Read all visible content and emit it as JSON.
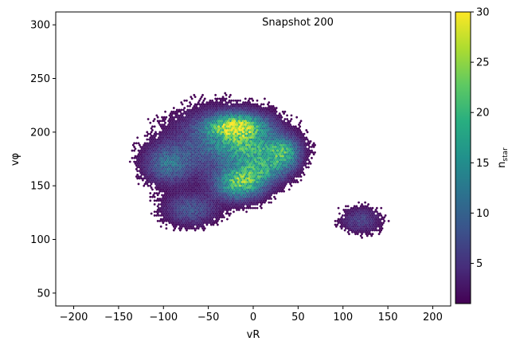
{
  "chart_data": {
    "type": "heatmap",
    "subtype": "hexbin",
    "annotation": "Snapshot 200",
    "title": "",
    "xlabel": "vR",
    "ylabel": "vφ",
    "xlim": [
      -220,
      220
    ],
    "ylim": [
      38,
      312
    ],
    "xticks": [
      -200,
      -150,
      -100,
      -50,
      0,
      50,
      100,
      150,
      200
    ],
    "yticks": [
      50,
      100,
      150,
      200,
      250,
      300
    ],
    "grid": false,
    "colorbar": {
      "label": "n_star",
      "label_main": "n",
      "label_sub": "star",
      "colormap": "viridis",
      "range": [
        1,
        30
      ],
      "ticks": [
        5,
        10,
        15,
        20,
        25,
        30
      ]
    },
    "clumps": [
      {
        "name": "main_body",
        "vR": -35,
        "vphi": 190,
        "sigma_vR": 38,
        "sigma_vphi": 20,
        "peak": 9,
        "density": "high"
      },
      {
        "name": "upper_arc",
        "vR": -18,
        "vphi": 205,
        "sigma_vR": 22,
        "sigma_vphi": 8,
        "peak": 24,
        "density": "high"
      },
      {
        "name": "middle_arc",
        "vR": 0,
        "vphi": 185,
        "sigma_vR": 25,
        "sigma_vphi": 9,
        "peak": 12,
        "density": "medium"
      },
      {
        "name": "right_arc",
        "vR": 35,
        "vphi": 180,
        "sigma_vR": 12,
        "sigma_vphi": 10,
        "peak": 14,
        "density": "medium"
      },
      {
        "name": "inner_streams",
        "vR": 10,
        "vphi": 165,
        "sigma_vR": 18,
        "sigma_vphi": 9,
        "peak": 13,
        "density": "medium"
      },
      {
        "name": "lower_core",
        "vR": -15,
        "vphi": 152,
        "sigma_vR": 18,
        "sigma_vphi": 10,
        "peak": 20,
        "density": "high"
      },
      {
        "name": "left_lobe",
        "vR": -95,
        "vphi": 170,
        "sigma_vR": 18,
        "sigma_vphi": 12,
        "peak": 10,
        "density": "medium"
      },
      {
        "name": "lower_tail",
        "vR": -70,
        "vphi": 128,
        "sigma_vR": 20,
        "sigma_vphi": 10,
        "peak": 8,
        "density": "medium"
      },
      {
        "name": "right_clump",
        "vR": 120,
        "vphi": 118,
        "sigma_vR": 15,
        "sigma_vphi": 8,
        "peak": 6,
        "density": "medium"
      }
    ]
  }
}
